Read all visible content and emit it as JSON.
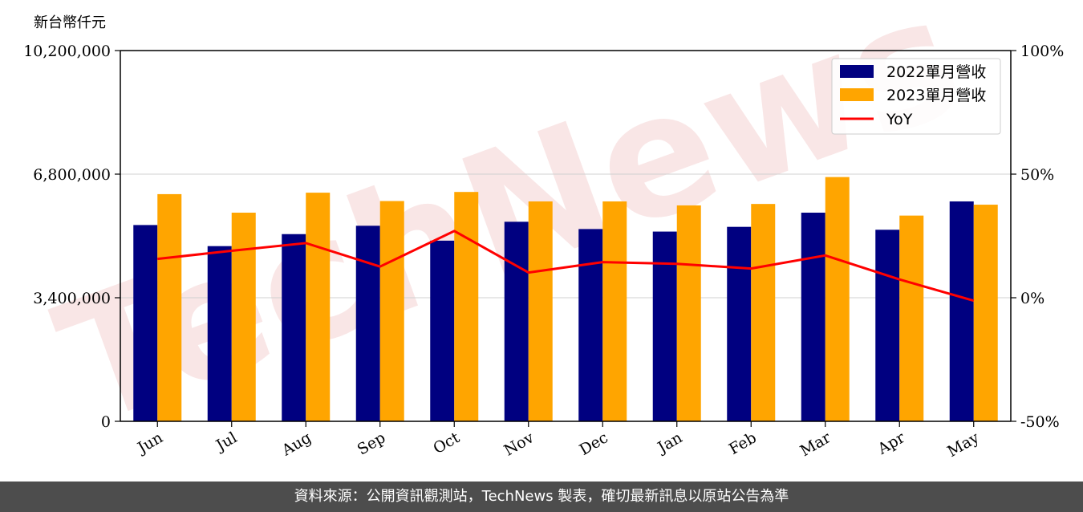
{
  "y_unit_label": "新台幣仟元",
  "footer_text": "資料來源：公開資訊觀測站，TechNews 製表，確切最新訊息以原站公告為準",
  "watermark_text": "TechNews",
  "colors": {
    "series_2022": "#000080",
    "series_2023": "#FFA500",
    "yoy": "#FF0000",
    "footer_bg": "#4d4d4d",
    "watermark": "#f2c7c7"
  },
  "chart_data": {
    "type": "bar",
    "categories": [
      "Jun",
      "Jul",
      "Aug",
      "Sep",
      "Oct",
      "Nov",
      "Dec",
      "Jan",
      "Feb",
      "Mar",
      "Apr",
      "May"
    ],
    "series": [
      {
        "name": "2022單月營收",
        "values": [
          5400000,
          4820000,
          5150000,
          5380000,
          4970000,
          5490000,
          5290000,
          5220000,
          5350000,
          5740000,
          5270000,
          6050000
        ]
      },
      {
        "name": "2023單月營收",
        "values": [
          6250000,
          5740000,
          6290000,
          6060000,
          6310000,
          6050000,
          6050000,
          5940000,
          5980000,
          6720000,
          5660000,
          5960000
        ]
      }
    ],
    "line_series": {
      "name": "YoY",
      "values": [
        15.7,
        19.0,
        22.1,
        12.6,
        27.0,
        10.2,
        14.4,
        13.7,
        11.8,
        17.1,
        7.4,
        -1.2
      ]
    },
    "ylim": [
      0,
      10200000
    ],
    "y2lim": [
      -50,
      100
    ],
    "yticks": [
      "0",
      "3,400,000",
      "6,800,000",
      "10,200,000"
    ],
    "y2ticks": [
      "-50%",
      "0%",
      "50%",
      "100%"
    ],
    "grid": true,
    "legend_position": "top-right",
    "xlabel": "",
    "ylabel": "新台幣仟元"
  }
}
